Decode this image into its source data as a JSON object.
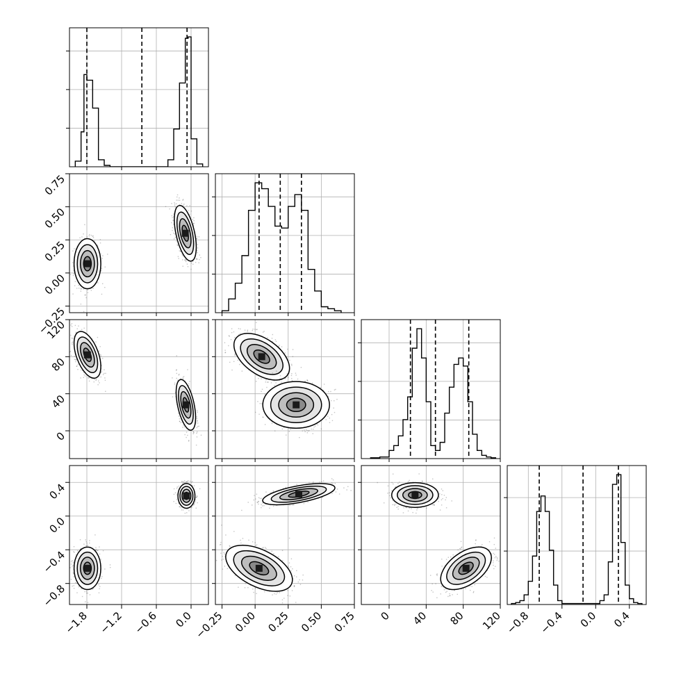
{
  "chart_data": {
    "type": "corner",
    "grid": true,
    "line_color": "#000000",
    "grid_color": "#b0b0b0",
    "params": [
      {
        "range": [
          -2.1,
          0.3
        ],
        "ticks": [
          -1.8,
          -1.2,
          -0.6,
          0.0
        ],
        "tick_labels": [
          "−1.8",
          "−1.2",
          "−0.6",
          "0.0"
        ],
        "quantiles": [
          -1.8,
          -0.85,
          -0.07
        ],
        "hist": {
          "edges": [
            -2.0,
            -1.9,
            -1.85,
            -1.8,
            -1.7,
            -1.6,
            -1.5,
            -1.4,
            -0.4,
            -0.3,
            -0.2,
            -0.1,
            -0.05,
            0.0,
            0.1,
            0.2
          ],
          "counts": [
            4,
            25,
            66,
            62,
            42,
            5,
            1,
            0,
            5,
            27,
            60,
            92,
            93,
            20,
            2
          ]
        }
      },
      {
        "range": [
          -0.3,
          0.75
        ],
        "ticks": [
          -0.25,
          0.0,
          0.25,
          0.5,
          0.75
        ],
        "tick_labels": [
          "−0.25",
          "0.00",
          "0.25",
          "0.50",
          "0.75"
        ],
        "quantiles": [
          0.03,
          0.19,
          0.35
        ],
        "hist": {
          "edges": [
            -0.25,
            -0.2,
            -0.15,
            -0.1,
            -0.05,
            0.0,
            0.05,
            0.1,
            0.15,
            0.2,
            0.25,
            0.3,
            0.35,
            0.4,
            0.45,
            0.5,
            0.55,
            0.6,
            0.65
          ],
          "counts": [
            1,
            7,
            15,
            29,
            52,
            66,
            63,
            54,
            44,
            43,
            54,
            60,
            52,
            22,
            11,
            3,
            2,
            1
          ]
        }
      },
      {
        "range": [
          -30,
          120
        ],
        "ticks": [
          0,
          40,
          80,
          120
        ],
        "tick_labels": [
          "0",
          "40",
          "80",
          "120"
        ],
        "quantiles": [
          23,
          50,
          86
        ],
        "hist": {
          "edges": [
            -20,
            -15,
            -10,
            -5,
            0,
            5,
            10,
            15,
            20,
            25,
            30,
            35,
            40,
            45,
            50,
            55,
            60,
            65,
            70,
            75,
            80,
            85,
            90,
            95,
            100,
            105,
            110,
            115
          ],
          "counts": [
            0.5,
            0.5,
            1,
            1,
            5,
            8,
            14,
            24,
            38,
            68,
            80,
            62,
            35,
            8,
            5,
            10,
            28,
            44,
            58,
            62,
            57,
            35,
            15,
            5,
            2,
            1,
            0.5
          ]
        }
      },
      {
        "range": [
          -1.05,
          0.6
        ],
        "ticks": [
          -0.8,
          -0.4,
          0.0,
          0.4
        ],
        "tick_labels": [
          "−0.8",
          "−0.4",
          "0.0",
          "0.4"
        ],
        "quantiles": [
          -0.67,
          -0.15,
          0.27
        ],
        "hist": {
          "edges": [
            -1.0,
            -0.95,
            -0.9,
            -0.85,
            -0.8,
            -0.75,
            -0.7,
            -0.65,
            -0.6,
            -0.55,
            -0.5,
            -0.45,
            -0.4,
            0.05,
            0.1,
            0.15,
            0.2,
            0.25,
            0.3,
            0.35,
            0.4,
            0.45,
            0.5,
            0.55
          ],
          "counts": [
            0.5,
            1,
            2,
            5,
            12,
            25,
            48,
            56,
            48,
            28,
            10,
            2,
            0.5,
            2,
            5,
            22,
            62,
            67,
            32,
            10,
            3,
            1,
            0.5
          ]
        }
      }
    ],
    "panels": [
      {
        "row": 1,
        "col": 0,
        "modes": [
          {
            "mx": -1.79,
            "my": 0.07,
            "sx": 0.11,
            "sy": 0.09,
            "rho": 0.0
          },
          {
            "mx": -0.1,
            "my": 0.3,
            "sx": 0.09,
            "sy": 0.1,
            "rho": -0.5
          }
        ]
      },
      {
        "row": 2,
        "col": 0,
        "modes": [
          {
            "mx": -1.79,
            "my": 82,
            "sx": 0.11,
            "sy": 12,
            "rho": -0.5
          },
          {
            "mx": -0.09,
            "my": 28,
            "sx": 0.08,
            "sy": 13,
            "rho": -0.5
          }
        ]
      },
      {
        "row": 2,
        "col": 1,
        "modes": [
          {
            "mx": 0.05,
            "my": 80,
            "sx": 0.1,
            "sy": 12,
            "rho": -0.5
          },
          {
            "mx": 0.31,
            "my": 28,
            "sx": 0.12,
            "sy": 12,
            "rho": 0.0
          }
        ]
      },
      {
        "row": 3,
        "col": 0,
        "modes": [
          {
            "mx": -1.79,
            "my": -0.62,
            "sx": 0.11,
            "sy": 0.12,
            "rho": 0.0
          },
          {
            "mx": -0.08,
            "my": 0.24,
            "sx": 0.07,
            "sy": 0.07,
            "rho": 0.0
          }
        ]
      },
      {
        "row": 3,
        "col": 1,
        "modes": [
          {
            "mx": 0.03,
            "my": -0.62,
            "sx": 0.12,
            "sy": 0.13,
            "rho": -0.5
          },
          {
            "mx": 0.33,
            "my": 0.26,
            "sx": 0.13,
            "sy": 0.06,
            "rho": 0.6
          }
        ]
      },
      {
        "row": 3,
        "col": 2,
        "modes": [
          {
            "mx": 28,
            "my": 0.25,
            "sx": 12,
            "sy": 0.07,
            "rho": 0.0
          },
          {
            "mx": 83,
            "my": -0.62,
            "sx": 13,
            "sy": 0.12,
            "rho": 0.5
          }
        ]
      }
    ]
  }
}
